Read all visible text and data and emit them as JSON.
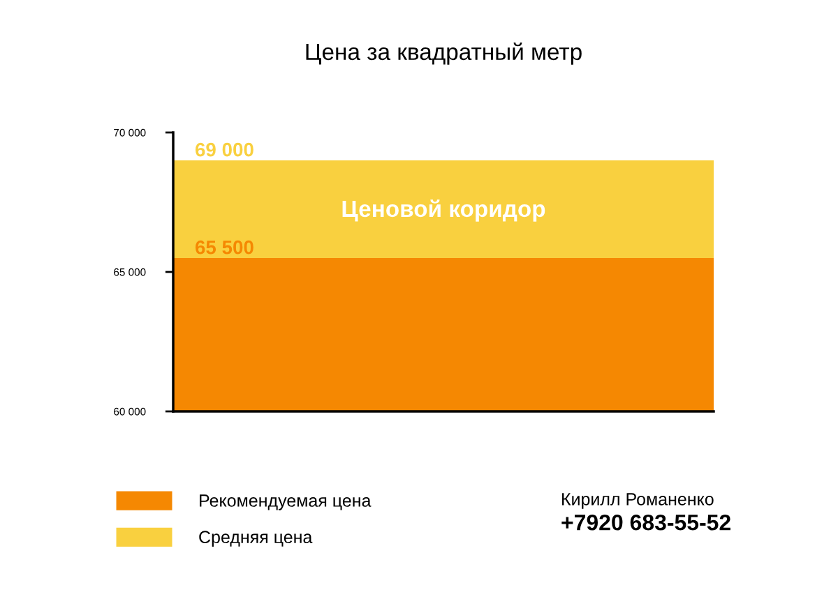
{
  "chart_data": {
    "type": "bar",
    "title": "Цена за квадратный метр",
    "categories": [
      null
    ],
    "series": [
      {
        "name": "Рекомендуемая цена",
        "color": "#f58802",
        "values": [
          65500
        ],
        "value_labels": [
          "65 500"
        ]
      }
    ],
    "bands": [
      {
        "axis": "y",
        "from": 65500,
        "to": 69000,
        "label": "Средняя цена",
        "color": "#f9d03f"
      }
    ],
    "ylim": [
      60000,
      70000
    ],
    "yticks": [
      {
        "value": 60000,
        "label": "60 000"
      },
      {
        "value": 65000,
        "label": "65 000"
      },
      {
        "value": 70000,
        "label": "70 000"
      }
    ],
    "grid": false,
    "legend": "bottom left",
    "annotations": [
      {
        "text": "69 000",
        "y": 69000
      },
      "Ценовой коридор",
      "Кирилл Романенко",
      "+7920 683-55-52"
    ]
  }
}
